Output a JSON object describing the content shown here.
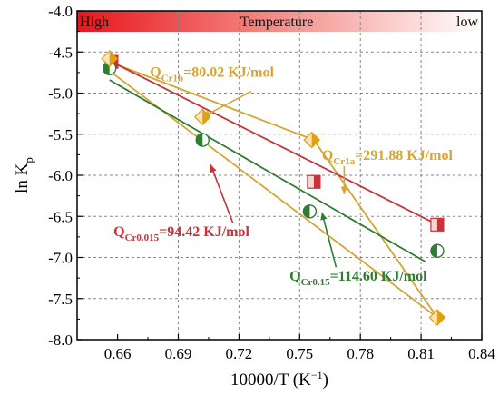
{
  "chart_data": {
    "type": "scatter",
    "xlabel": "10000/T (K",
    "xlabel_sup": "−1",
    "xlabel_close": ")",
    "ylabel": "ln K",
    "ylabel_sub": "p",
    "xlim": [
      0.64,
      0.84
    ],
    "ylim": [
      -8.0,
      -4.0
    ],
    "xticks": [
      "0.66",
      "0.69",
      "0.72",
      "0.75",
      "0.78",
      "0.81",
      "0.84"
    ],
    "xtick_values": [
      0.66,
      0.69,
      0.72,
      0.75,
      0.78,
      0.81,
      0.84
    ],
    "yticks": [
      "-4.0",
      "-4.5",
      "-5.0",
      "-5.5",
      "-6.0",
      "-6.5",
      "-7.0",
      "-7.5",
      "-8.0"
    ],
    "ytick_values": [
      -4.0,
      -4.5,
      -5.0,
      -5.5,
      -6.0,
      -6.5,
      -7.0,
      -7.5,
      -8.0
    ],
    "grid": true,
    "temperature_band": {
      "left": "High",
      "center": "Temperature",
      "right": "low"
    },
    "series": [
      {
        "marker": "square",
        "color": "#c8323a",
        "points": [
          [
            0.657,
            -4.62
          ],
          [
            0.757,
            -6.08
          ],
          [
            0.818,
            -6.6
          ]
        ],
        "fit": [
          [
            0.657,
            -4.62
          ],
          [
            0.818,
            -6.6
          ]
        ]
      },
      {
        "marker": "circle",
        "color": "#2e7d32",
        "points": [
          [
            0.656,
            -4.7
          ],
          [
            0.702,
            -5.57
          ],
          [
            0.755,
            -6.44
          ],
          [
            0.818,
            -6.92
          ]
        ],
        "fit": [
          [
            0.656,
            -4.84
          ],
          [
            0.812,
            -7.05
          ]
        ]
      },
      {
        "marker": "diamond",
        "color": "#e0a010",
        "points": [
          [
            0.656,
            -4.58
          ],
          [
            0.702,
            -5.29
          ],
          [
            0.756,
            -5.57
          ],
          [
            0.818,
            -7.73
          ]
        ]
      }
    ],
    "fits_cr1": [
      {
        "color": "#d7a531",
        "points": [
          [
            0.656,
            -4.62
          ],
          [
            0.757,
            -5.57
          ]
        ]
      },
      {
        "color": "#d7a531",
        "points": [
          [
            0.757,
            -5.57
          ],
          [
            0.818,
            -7.73
          ]
        ]
      },
      {
        "color": "#d7a531",
        "points": [
          [
            0.656,
            -4.73
          ],
          [
            0.818,
            -7.73
          ]
        ]
      }
    ],
    "annotations": [
      {
        "main": "Q",
        "sub": "Cr1b",
        "rest": "=80.02 KJ/mol",
        "color": "#d7a531",
        "x": 0.676,
        "y": -4.8,
        "arrow_to": [
          0.702,
          -5.29
        ],
        "arrow_from": [
          0.726,
          -4.98
        ]
      },
      {
        "main": "Q",
        "sub": "Cr1a",
        "rest": "=291.88 KJ/mol",
        "color": "#d7a531",
        "x": 0.761,
        "y": -5.81,
        "arrow_to": [
          0.772,
          -6.23
        ],
        "arrow_from": [
          0.772,
          -5.89
        ]
      },
      {
        "main": "Q",
        "sub": "Cr0.015",
        "rest": "=94.42 KJ/mol",
        "color": "#c8323a",
        "x": 0.658,
        "y": -6.74,
        "arrow_to": [
          0.706,
          -5.87
        ],
        "arrow_from": [
          0.717,
          -6.58
        ]
      },
      {
        "main": "Q",
        "sub": "Cr0.15",
        "rest": "=114.60 KJ/mol",
        "color": "#2e7d32",
        "x": 0.745,
        "y": -7.28,
        "arrow_to": [
          0.761,
          -6.45
        ],
        "arrow_from": [
          0.768,
          -7.12
        ]
      }
    ]
  }
}
